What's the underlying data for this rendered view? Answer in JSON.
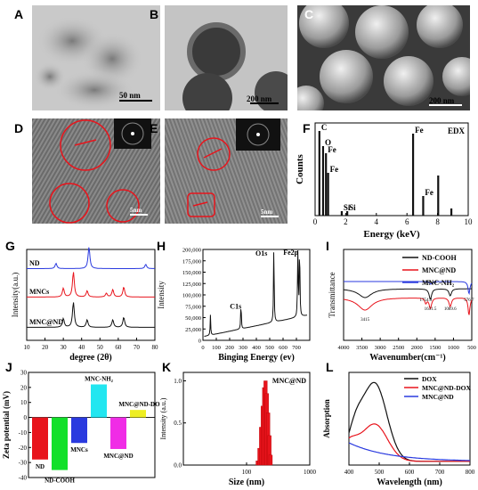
{
  "panels": {
    "A": {
      "label": "A",
      "scalebar": "50 nm"
    },
    "B": {
      "label": "B",
      "scalebar": "200 nm"
    },
    "C": {
      "label": "C",
      "scalebar": "200 nm"
    },
    "D": {
      "label": "D",
      "scalebar": "5nm"
    },
    "E": {
      "label": "E",
      "scalebar": "5nm"
    },
    "F": {
      "label": "F"
    },
    "G": {
      "label": "G"
    },
    "H": {
      "label": "H"
    },
    "I": {
      "label": "I"
    },
    "J": {
      "label": "J"
    },
    "K": {
      "label": "K"
    },
    "L": {
      "label": "L"
    }
  },
  "colors": {
    "red": "#e8141c",
    "blue": "#2a3adf",
    "black": "#111111",
    "cyan": "#22e6f0",
    "green": "#12e02a",
    "magenta": "#f02ce6",
    "yellow": "#eeee22"
  },
  "chart_data": [
    {
      "panel": "F",
      "type": "line",
      "xlabel": "Energy (keV)",
      "ylabel": "Counts",
      "legend": "EDX",
      "xlim": [
        0,
        10
      ],
      "xticks": [
        "0",
        "2",
        "4",
        "6",
        "8",
        "10"
      ],
      "peaks": [
        {
          "x": 0.28,
          "y": 0.95,
          "label": "C"
        },
        {
          "x": 0.52,
          "y": 0.78,
          "label": "O"
        },
        {
          "x": 0.71,
          "y": 0.7,
          "label": "Fe"
        },
        {
          "x": 0.85,
          "y": 0.48,
          "label": "Fe"
        },
        {
          "x": 1.74,
          "y": 0.05,
          "label": "Si"
        },
        {
          "x": 2.1,
          "y": 0.05,
          "label": "Si"
        },
        {
          "x": 6.4,
          "y": 0.92,
          "label": "Fe"
        },
        {
          "x": 7.06,
          "y": 0.22,
          "label": "Fe"
        },
        {
          "x": 8.04,
          "y": 0.45,
          "label": ""
        },
        {
          "x": 8.9,
          "y": 0.08,
          "label": ""
        }
      ]
    },
    {
      "panel": "G",
      "type": "line",
      "xlabel": "degree (2θ)",
      "ylabel": "Intensity(a.u.)",
      "xlim": [
        10,
        80
      ],
      "xticks": [
        "10",
        "20",
        "30",
        "40",
        "50",
        "60",
        "70",
        "80"
      ],
      "series": [
        {
          "name": "ND",
          "color": "blue",
          "peaks": [
            [
              26,
              0.25
            ],
            [
              44,
              1.0
            ],
            [
              75,
              0.2
            ]
          ]
        },
        {
          "name": "MNCs",
          "color": "red",
          "peaks": [
            [
              30,
              0.35
            ],
            [
              35.5,
              1.0
            ],
            [
              43,
              0.25
            ],
            [
              53.5,
              0.15
            ],
            [
              57,
              0.3
            ],
            [
              63,
              0.4
            ]
          ]
        },
        {
          "name": "MNC@ND",
          "color": "black",
          "peaks": [
            [
              30,
              0.35
            ],
            [
              35.5,
              1.0
            ],
            [
              43,
              0.3
            ],
            [
              57,
              0.3
            ],
            [
              63,
              0.4
            ]
          ]
        }
      ]
    },
    {
      "panel": "H",
      "type": "line",
      "xlabel": "Binging Energy (ev)",
      "ylabel": "Intensity",
      "xlim": [
        0,
        800
      ],
      "xticks": [
        "0",
        "100",
        "200",
        "300",
        "400",
        "500",
        "600",
        "700"
      ],
      "ylim": [
        0,
        200000
      ],
      "yticks": [
        "0",
        "25,000",
        "50,000",
        "75,000",
        "100,000",
        "125,000",
        "150,000",
        "175,000",
        "200,000"
      ],
      "annotations": [
        "C1s",
        "O1s",
        "Fe2p"
      ],
      "peaks": [
        [
          56,
          45000
        ],
        [
          285,
          62000
        ],
        [
          531,
          192000
        ],
        [
          711,
          190000
        ],
        [
          724,
          175000
        ]
      ]
    },
    {
      "panel": "I",
      "type": "line",
      "xlabel": "Wavenumber(cm⁻¹)",
      "ylabel": "Transmittance",
      "xlim": [
        4000,
        500
      ],
      "xticks": [
        "4000",
        "3500",
        "3000",
        "2500",
        "2000",
        "1500",
        "1000",
        "500"
      ],
      "series": [
        {
          "name": "ND-COOH",
          "color": "black"
        },
        {
          "name": "MNC@ND",
          "color": "red"
        },
        {
          "name": "MNC-NH₂",
          "color": "blue"
        }
      ],
      "annotations": [
        "3415",
        "1754.9",
        "1631.5",
        "1089.6",
        "1614.1",
        "576.7"
      ]
    },
    {
      "panel": "J",
      "type": "bar",
      "ylabel": "Zeta potential (mV)",
      "ylim": [
        -40,
        30
      ],
      "yticks": [
        "-40",
        "-30",
        "-20",
        "-10",
        "0",
        "10",
        "20",
        "30"
      ],
      "categories": [
        "ND",
        "ND-COOH",
        "MNCs",
        "MNC-NH₂",
        "MNC@ND",
        "MNC@ND-DOX"
      ],
      "values": [
        -28,
        -35,
        -17,
        22,
        -21,
        5
      ],
      "bar_colors": [
        "red",
        "green",
        "blue",
        "cyan",
        "magenta",
        "yellow"
      ]
    },
    {
      "panel": "K",
      "type": "bar",
      "xlabel": "Size (nm)",
      "ylabel": "Intensity (a.u.)",
      "legend": "MNC@ND",
      "xscale": "log",
      "xlim": [
        10,
        1000
      ],
      "xticks": [
        "100",
        "1000"
      ],
      "ylim": [
        0,
        1.1
      ],
      "yticks": [
        "0.0",
        "0.5",
        "1.0"
      ],
      "x": [
        150,
        160,
        170,
        180,
        190,
        200,
        210,
        220,
        230,
        240
      ],
      "values": [
        0.05,
        0.2,
        0.45,
        0.7,
        0.92,
        1.0,
        0.85,
        0.62,
        0.35,
        0.12
      ]
    },
    {
      "panel": "L",
      "type": "line",
      "xlabel": "Wavelength (nm)",
      "ylabel": "Absorption",
      "xlim": [
        400,
        800
      ],
      "xticks": [
        "400",
        "500",
        "600",
        "700",
        "800"
      ],
      "series": [
        {
          "name": "DOX",
          "color": "black"
        },
        {
          "name": "MNC@ND-DOX",
          "color": "red"
        },
        {
          "name": "MNC@ND",
          "color": "blue"
        }
      ]
    }
  ]
}
